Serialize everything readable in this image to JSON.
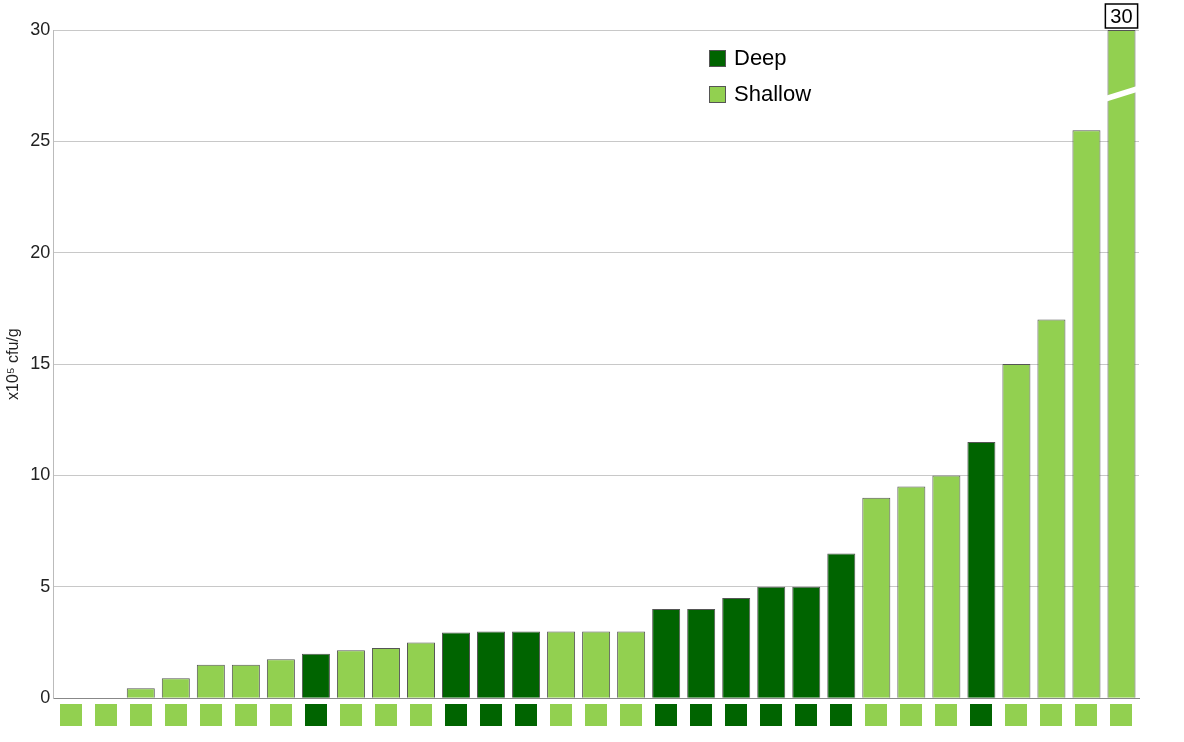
{
  "chart_data": {
    "type": "bar",
    "ylabel": "x10⁵ cfu/g",
    "categories": [
      null,
      null,
      null,
      null,
      null,
      null,
      null,
      null,
      null,
      null,
      null,
      null,
      null,
      null,
      null,
      null,
      null,
      null,
      null,
      null,
      null,
      null,
      null,
      null,
      null,
      null,
      null,
      null,
      null,
      null,
      null
    ],
    "series": [
      {
        "name": "Deep",
        "color": "#006400",
        "values": [
          null,
          null,
          null,
          null,
          null,
          null,
          null,
          2,
          null,
          null,
          null,
          2.95,
          3,
          3,
          null,
          null,
          null,
          4,
          4,
          4.5,
          5,
          5,
          6.5,
          null,
          null,
          null,
          11.5,
          null,
          null,
          null,
          null
        ]
      },
      {
        "name": "Shallow",
        "color": "#92d050",
        "values": [
          0,
          0,
          0.45,
          0.9,
          1.5,
          1.5,
          1.75,
          null,
          2.15,
          2.25,
          2.5,
          null,
          null,
          null,
          3,
          3,
          3,
          null,
          null,
          null,
          null,
          null,
          null,
          9,
          9.5,
          10,
          null,
          15,
          17,
          25.5,
          30
        ],
        "value_labels": [
          null,
          null,
          null,
          null,
          null,
          null,
          null,
          null,
          null,
          null,
          null,
          null,
          null,
          null,
          null,
          null,
          null,
          null,
          null,
          null,
          null,
          null,
          null,
          null,
          null,
          null,
          null,
          null,
          null,
          null,
          "30"
        ]
      }
    ],
    "stacked": true,
    "ylim": [
      0,
      30
    ],
    "yticks": [
      0,
      5,
      10,
      15,
      20,
      25,
      30
    ],
    "grid": "y",
    "legend": "top right"
  }
}
